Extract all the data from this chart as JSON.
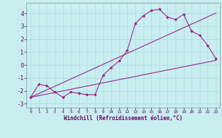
{
  "xlabel": "Windchill (Refroidissement éolien,°C)",
  "background_color": "#c8eef0",
  "grid_color": "#b0dfe2",
  "line_color": "#9b1f8e",
  "xlim": [
    -0.5,
    23.5
  ],
  "ylim": [
    -3.3,
    4.8
  ],
  "xticks": [
    0,
    1,
    2,
    3,
    4,
    5,
    6,
    7,
    8,
    9,
    10,
    11,
    12,
    13,
    14,
    15,
    16,
    17,
    18,
    19,
    20,
    21,
    22,
    23
  ],
  "yticks": [
    -3,
    -2,
    -1,
    0,
    1,
    2,
    3,
    4
  ],
  "series1_x": [
    0,
    1,
    2,
    3,
    4,
    5,
    6,
    7,
    8,
    9,
    10,
    11,
    12,
    13,
    14,
    15,
    16,
    17,
    18,
    19,
    20,
    21,
    22,
    23
  ],
  "series1_y": [
    -2.5,
    -1.5,
    -1.6,
    -2.1,
    -2.5,
    -2.1,
    -2.2,
    -2.3,
    -2.3,
    -0.8,
    -0.2,
    0.3,
    1.1,
    3.2,
    3.8,
    4.2,
    4.3,
    3.7,
    3.5,
    3.9,
    2.6,
    2.3,
    1.5,
    0.5
  ],
  "series2_x": [
    0,
    23
  ],
  "series2_y": [
    -2.5,
    0.35
  ],
  "series3_x": [
    0,
    23
  ],
  "series3_y": [
    -2.5,
    4.0
  ]
}
